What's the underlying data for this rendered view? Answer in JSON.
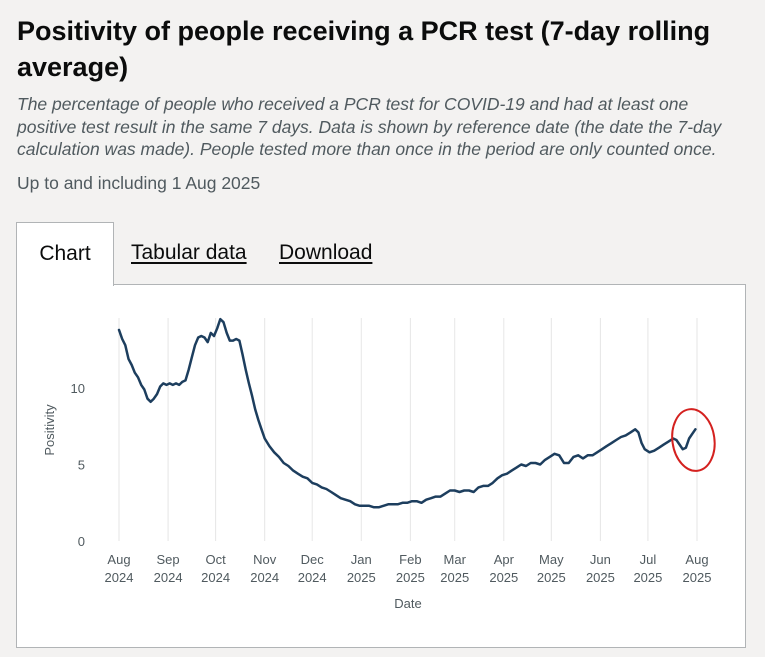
{
  "header": {
    "title": "Positivity of people receiving a PCR test (7-day rolling average)",
    "subtitle": "The percentage of people who received a PCR test for COVID-19 and had at least one positive test result in the same 7 days. Data is shown by reference date (the date the 7-day calculation was made). People tested more than once in the period are only counted once.",
    "updated": "Up to and including 1 Aug 2025"
  },
  "tabs": [
    {
      "label": "Chart",
      "active": true
    },
    {
      "label": "Tabular data",
      "active": false
    },
    {
      "label": "Download",
      "active": false
    }
  ],
  "colors": {
    "line": "#1d3e5e",
    "grid": "#e6e6e6",
    "annotation": "#d4211f"
  },
  "chart_data": {
    "type": "line",
    "title": "",
    "xlabel": "Date",
    "ylabel": "Positivity",
    "ylim": [
      0,
      14.5
    ],
    "yticks": [
      0,
      5,
      10
    ],
    "x_range_days": [
      0,
      365
    ],
    "xticks": [
      {
        "day": 0,
        "month": "Aug",
        "year": "2024"
      },
      {
        "day": 31,
        "month": "Sep",
        "year": "2024"
      },
      {
        "day": 61,
        "month": "Oct",
        "year": "2024"
      },
      {
        "day": 92,
        "month": "Nov",
        "year": "2024"
      },
      {
        "day": 122,
        "month": "Dec",
        "year": "2024"
      },
      {
        "day": 153,
        "month": "Jan",
        "year": "2025"
      },
      {
        "day": 184,
        "month": "Feb",
        "year": "2025"
      },
      {
        "day": 212,
        "month": "Mar",
        "year": "2025"
      },
      {
        "day": 243,
        "month": "Apr",
        "year": "2025"
      },
      {
        "day": 273,
        "month": "May",
        "year": "2025"
      },
      {
        "day": 304,
        "month": "Jun",
        "year": "2025"
      },
      {
        "day": 334,
        "month": "Jul",
        "year": "2025"
      },
      {
        "day": 365,
        "month": "Aug",
        "year": "2025"
      }
    ],
    "series": [
      {
        "name": "Positivity",
        "points": [
          [
            0,
            13.8
          ],
          [
            2,
            13.2
          ],
          [
            4,
            12.8
          ],
          [
            6,
            11.9
          ],
          [
            8,
            11.5
          ],
          [
            10,
            11.0
          ],
          [
            12,
            10.7
          ],
          [
            14,
            10.2
          ],
          [
            16,
            9.9
          ],
          [
            18,
            9.3
          ],
          [
            20,
            9.1
          ],
          [
            22,
            9.3
          ],
          [
            24,
            9.6
          ],
          [
            26,
            10.1
          ],
          [
            28,
            10.3
          ],
          [
            30,
            10.2
          ],
          [
            32,
            10.3
          ],
          [
            34,
            10.2
          ],
          [
            36,
            10.3
          ],
          [
            38,
            10.2
          ],
          [
            40,
            10.4
          ],
          [
            42,
            10.5
          ],
          [
            44,
            11.2
          ],
          [
            46,
            12.0
          ],
          [
            48,
            12.8
          ],
          [
            50,
            13.3
          ],
          [
            52,
            13.4
          ],
          [
            54,
            13.3
          ],
          [
            56,
            13.0
          ],
          [
            58,
            13.6
          ],
          [
            60,
            13.4
          ],
          [
            62,
            13.9
          ],
          [
            64,
            14.5
          ],
          [
            66,
            14.3
          ],
          [
            68,
            13.6
          ],
          [
            70,
            13.1
          ],
          [
            72,
            13.1
          ],
          [
            74,
            13.2
          ],
          [
            76,
            13.1
          ],
          [
            78,
            12.2
          ],
          [
            80,
            11.2
          ],
          [
            82,
            10.3
          ],
          [
            84,
            9.5
          ],
          [
            86,
            8.6
          ],
          [
            88,
            7.9
          ],
          [
            90,
            7.3
          ],
          [
            92,
            6.7
          ],
          [
            95,
            6.2
          ],
          [
            98,
            5.8
          ],
          [
            101,
            5.5
          ],
          [
            104,
            5.1
          ],
          [
            107,
            4.9
          ],
          [
            110,
            4.6
          ],
          [
            113,
            4.4
          ],
          [
            116,
            4.2
          ],
          [
            119,
            4.1
          ],
          [
            122,
            3.8
          ],
          [
            125,
            3.7
          ],
          [
            128,
            3.5
          ],
          [
            131,
            3.4
          ],
          [
            134,
            3.2
          ],
          [
            137,
            3.0
          ],
          [
            140,
            2.8
          ],
          [
            143,
            2.7
          ],
          [
            146,
            2.6
          ],
          [
            149,
            2.4
          ],
          [
            152,
            2.3
          ],
          [
            155,
            2.3
          ],
          [
            158,
            2.3
          ],
          [
            161,
            2.2
          ],
          [
            164,
            2.2
          ],
          [
            167,
            2.3
          ],
          [
            170,
            2.4
          ],
          [
            173,
            2.4
          ],
          [
            176,
            2.4
          ],
          [
            179,
            2.5
          ],
          [
            182,
            2.5
          ],
          [
            185,
            2.6
          ],
          [
            188,
            2.6
          ],
          [
            191,
            2.5
          ],
          [
            194,
            2.7
          ],
          [
            197,
            2.8
          ],
          [
            200,
            2.9
          ],
          [
            203,
            2.9
          ],
          [
            206,
            3.1
          ],
          [
            209,
            3.3
          ],
          [
            212,
            3.3
          ],
          [
            215,
            3.2
          ],
          [
            218,
            3.3
          ],
          [
            221,
            3.3
          ],
          [
            224,
            3.2
          ],
          [
            227,
            3.5
          ],
          [
            230,
            3.6
          ],
          [
            233,
            3.6
          ],
          [
            236,
            3.8
          ],
          [
            239,
            4.1
          ],
          [
            242,
            4.3
          ],
          [
            245,
            4.4
          ],
          [
            248,
            4.6
          ],
          [
            251,
            4.8
          ],
          [
            254,
            5.0
          ],
          [
            257,
            4.9
          ],
          [
            260,
            5.1
          ],
          [
            263,
            5.1
          ],
          [
            266,
            5.0
          ],
          [
            269,
            5.3
          ],
          [
            272,
            5.5
          ],
          [
            275,
            5.7
          ],
          [
            278,
            5.6
          ],
          [
            281,
            5.1
          ],
          [
            284,
            5.1
          ],
          [
            287,
            5.5
          ],
          [
            290,
            5.6
          ],
          [
            293,
            5.4
          ],
          [
            296,
            5.6
          ],
          [
            299,
            5.6
          ],
          [
            302,
            5.8
          ],
          [
            305,
            6.0
          ],
          [
            308,
            6.2
          ],
          [
            311,
            6.4
          ],
          [
            314,
            6.6
          ],
          [
            317,
            6.8
          ],
          [
            320,
            6.9
          ],
          [
            323,
            7.1
          ],
          [
            326,
            7.3
          ],
          [
            328,
            7.1
          ],
          [
            330,
            6.4
          ],
          [
            332,
            6.0
          ],
          [
            335,
            5.8
          ],
          [
            338,
            5.9
          ],
          [
            341,
            6.1
          ],
          [
            344,
            6.3
          ],
          [
            347,
            6.5
          ],
          [
            350,
            6.7
          ],
          [
            352,
            6.6
          ],
          [
            354,
            6.3
          ],
          [
            356,
            6.0
          ],
          [
            358,
            6.1
          ],
          [
            360,
            6.7
          ],
          [
            362,
            7.0
          ],
          [
            364,
            7.3
          ]
        ]
      }
    ]
  }
}
